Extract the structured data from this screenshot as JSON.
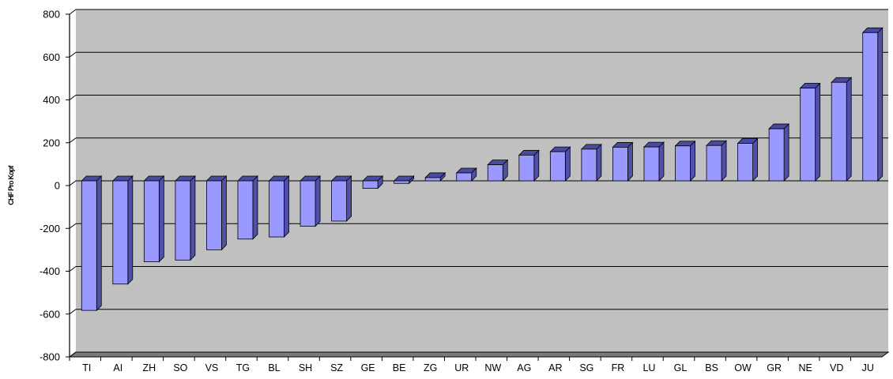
{
  "chart_data": {
    "type": "bar",
    "title": "",
    "xlabel": "",
    "ylabel": "CHF Pro Kopf",
    "ylim": [
      -800,
      800
    ],
    "yticks": [
      800,
      600,
      400,
      200,
      0,
      -200,
      -400,
      -600,
      -800
    ],
    "grid": true,
    "legend": "none",
    "categories": [
      "TI",
      "AI",
      "ZH",
      "SO",
      "VS",
      "TG",
      "BL",
      "SH",
      "SZ",
      "GE",
      "BE",
      "ZG",
      "UR",
      "NW",
      "AG",
      "AR",
      "SG",
      "FR",
      "LU",
      "GL",
      "BS",
      "OW",
      "GR",
      "NE",
      "VD",
      "JU"
    ],
    "values": [
      -605,
      -482,
      -378,
      -370,
      -322,
      -272,
      -262,
      -212,
      -188,
      -35,
      -12,
      15,
      37,
      75,
      120,
      136,
      148,
      157,
      158,
      163,
      165,
      175,
      243,
      433,
      460,
      692
    ],
    "colors": {
      "bar_front": "#9999ff",
      "bar_side": "#5050a8",
      "bar_top": "#4a4aa0",
      "plot_wall": "#c0c0c0",
      "plot_floor": "#7a7a7a",
      "grid": "#000000"
    }
  }
}
